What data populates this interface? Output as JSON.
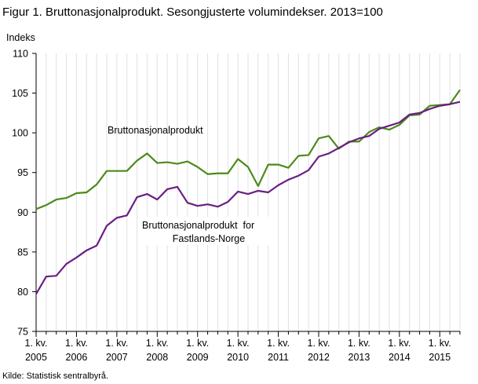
{
  "chart_data": {
    "type": "line",
    "title": "Figur 1. Bruttonasjonalprodukt. Sesongjusterte volumindekser. 2013=100",
    "ylabel": "Indeks",
    "ylim": [
      75,
      110
    ],
    "y_ticks": [
      75,
      80,
      85,
      90,
      95,
      100,
      105,
      110
    ],
    "x_tick_labels": [
      {
        "line1": "1. kv.",
        "line2": "2005"
      },
      {
        "line1": "1. kv.",
        "line2": "2006"
      },
      {
        "line1": "1. kv.",
        "line2": "2007"
      },
      {
        "line1": "1. kv.",
        "line2": "2008"
      },
      {
        "line1": "1. kv.",
        "line2": "2009"
      },
      {
        "line1": "1. kv.",
        "line2": "2010"
      },
      {
        "line1": "1. kv.",
        "line2": "2011"
      },
      {
        "line1": "1. kv.",
        "line2": "2012"
      },
      {
        "line1": "1. kv.",
        "line2": "2013"
      },
      {
        "line1": "1. kv.",
        "line2": "2014"
      },
      {
        "line1": "1. kv.",
        "line2": "2015"
      }
    ],
    "grid": "vertical",
    "series": [
      {
        "name": "Bruttonasjonalprodukt",
        "color": "#4d8a1a",
        "annotation": {
          "lines": [
            "Bruttonasjonalprodukt"
          ]
        },
        "values": [
          90.4,
          90.9,
          91.6,
          91.8,
          92.4,
          92.5,
          93.5,
          95.2,
          95.2,
          95.2,
          96.5,
          97.4,
          96.2,
          96.3,
          96.1,
          96.4,
          95.7,
          94.8,
          94.9,
          94.9,
          96.7,
          95.7,
          93.3,
          96.0,
          96.0,
          95.6,
          97.1,
          97.2,
          99.3,
          99.6,
          98.0,
          98.9,
          98.9,
          100.1,
          100.7,
          100.4,
          101.0,
          102.2,
          102.3,
          103.4,
          103.5,
          103.6,
          105.4
        ]
      },
      {
        "name": "Bruttonasjonalprodukt  for Fastlands-Norge",
        "color": "#6a1f82",
        "annotation": {
          "lines": [
            "Bruttonasjonalprodukt  for",
            "Fastlands-Norge"
          ]
        },
        "values": [
          79.7,
          81.9,
          82.0,
          83.5,
          84.3,
          85.2,
          85.8,
          88.3,
          89.3,
          89.6,
          91.9,
          92.3,
          91.6,
          92.9,
          93.2,
          91.2,
          90.8,
          91.0,
          90.7,
          91.3,
          92.6,
          92.3,
          92.7,
          92.5,
          93.4,
          94.1,
          94.6,
          95.3,
          97.0,
          97.4,
          98.1,
          98.8,
          99.3,
          99.6,
          100.5,
          100.9,
          101.3,
          102.3,
          102.5,
          103.0,
          103.4,
          103.6,
          103.9
        ]
      }
    ]
  },
  "source": "Kilde: Statistisk sentralbyrå."
}
